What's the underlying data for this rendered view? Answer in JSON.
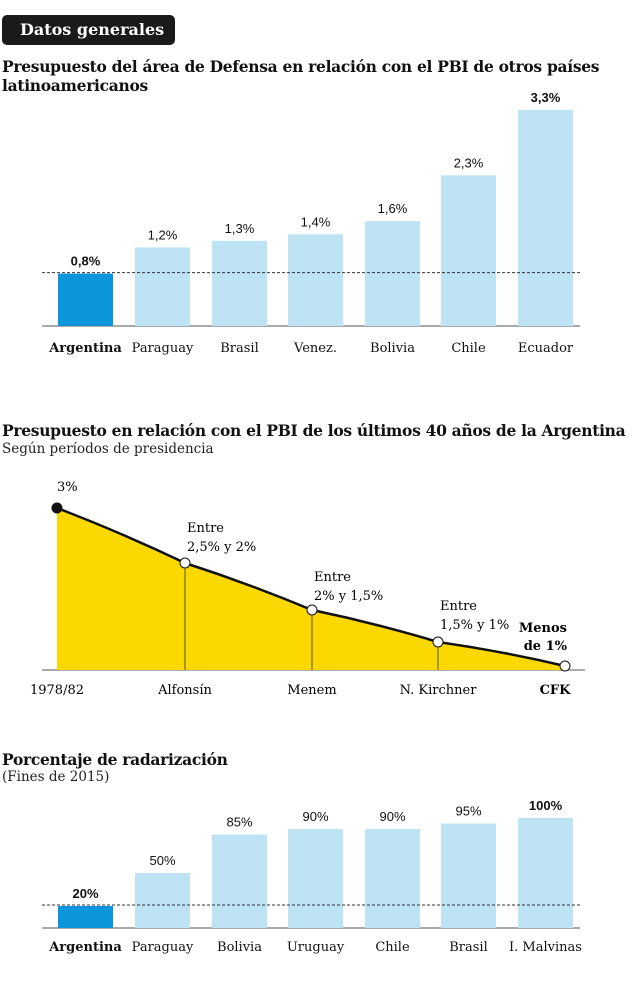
{
  "badge": "Datos generales",
  "chart_data": [
    {
      "type": "bar",
      "title": "Presupuesto del área de Defensa en relación con el PBI de otros países latinoamericanos",
      "categories": [
        "Argentina",
        "Paraguay",
        "Brasil",
        "Venez.",
        "Bolivia",
        "Chile",
        "Ecuador"
      ],
      "values": [
        0.8,
        1.2,
        1.3,
        1.4,
        1.6,
        2.3,
        3.3
      ],
      "labels": [
        "0,8%",
        "1,2%",
        "1,3%",
        "1,4%",
        "1,6%",
        "2,3%",
        "3,3%"
      ],
      "highlight": [
        0
      ],
      "bold_labels": [
        0,
        6
      ],
      "reference_line": 0.8,
      "ylim": [
        0,
        3.3
      ],
      "colors": {
        "highlight": "#0b96db",
        "default": "#bde3f5"
      }
    },
    {
      "type": "area",
      "title": "Presupuesto en relación con el PBI de los últimos 40 años de la Argentina",
      "subtitle": "Según períodos de presidencia",
      "categories": [
        "1978/82",
        "Alfonsín",
        "Menem",
        "N. Kirchner",
        "CFK"
      ],
      "values": [
        3,
        2.25,
        1.75,
        1.25,
        0.9
      ],
      "annotations": [
        [
          "3%"
        ],
        [
          "Entre",
          "2,5% y 2%"
        ],
        [
          "Entre",
          "2% y 1,5%"
        ],
        [
          "Entre",
          "1,5% y 1%"
        ],
        [
          "Menos",
          "de 1%"
        ]
      ],
      "bold_categories": [
        4
      ],
      "colors": {
        "fill": "#fad800",
        "line": "#111111"
      }
    },
    {
      "type": "bar",
      "title": "Porcentaje de radarización",
      "subtitle": "(Fines de 2015)",
      "categories": [
        "Argentina",
        "Paraguay",
        "Bolivia",
        "Uruguay",
        "Chile",
        "Brasil",
        "I. Malvinas"
      ],
      "values": [
        20,
        50,
        85,
        90,
        90,
        95,
        100
      ],
      "labels": [
        "20%",
        "50%",
        "85%",
        "90%",
        "90%",
        "95%",
        "100%"
      ],
      "highlight": [
        0
      ],
      "bold_labels": [
        0,
        6
      ],
      "reference_line": 20,
      "ylim": [
        0,
        100
      ],
      "colors": {
        "highlight": "#0b96db",
        "default": "#bde3f5"
      }
    }
  ]
}
